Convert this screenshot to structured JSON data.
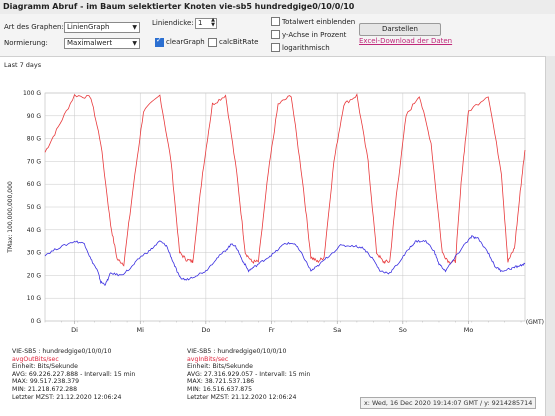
{
  "window": {
    "title": "Diagramm Abruf - im Baum selektierter Knoten vie-sb5 hundredgige0/10/0/10"
  },
  "controls": {
    "graph_type_label": "Art des Graphen:",
    "graph_type_value": "LinienGraph",
    "norm_label": "Normierung:",
    "norm_value": "Maximalwert",
    "linewidth_label": "Liniendicke:",
    "linewidth_value": "1",
    "clear_graph_label": "clearGraph",
    "clear_graph_checked": true,
    "calc_bitrate_label": "calcBitRate",
    "calc_bitrate_checked": false,
    "total_label": "Totalwert einblenden",
    "yaxis_percent_label": "y-Achse in Prozent",
    "log_label": "logarithmisch",
    "show_button": "Darstellen",
    "excel_link": "Excel-Download der Daten"
  },
  "chart_data": {
    "type": "line",
    "title": "Last 7 days",
    "xlabel": "(GMT)",
    "ylabel": "TMax: 100,000,000,000",
    "ylim": [
      0,
      100
    ],
    "yticks": [
      "0 G",
      "10 G",
      "20 G",
      "30 G",
      "40 G",
      "50 G",
      "60 G",
      "70 G",
      "80 G",
      "90 G",
      "100 G"
    ],
    "x_days": [
      "Di",
      "Mi",
      "Do",
      "Fr",
      "Sa",
      "So",
      "Mo"
    ],
    "x_range_days": [
      0,
      7.31
    ],
    "day_positions": [
      0.45,
      1.45,
      2.45,
      3.45,
      4.45,
      5.45,
      6.45
    ],
    "colors": {
      "out": "#e8393b",
      "in": "#3a2fe0"
    },
    "series": [
      {
        "name": "outBitsSec",
        "values": [
          [
            0,
            74
          ],
          [
            0.2,
            85
          ],
          [
            0.45,
            99
          ],
          [
            0.7,
            98
          ],
          [
            0.85,
            78
          ],
          [
            1.0,
            42
          ],
          [
            1.1,
            27
          ],
          [
            1.2,
            25
          ],
          [
            1.35,
            60
          ],
          [
            1.5,
            92
          ],
          [
            1.75,
            99
          ],
          [
            1.92,
            70
          ],
          [
            2.05,
            30
          ],
          [
            2.15,
            27
          ],
          [
            2.25,
            26
          ],
          [
            2.4,
            65
          ],
          [
            2.55,
            95
          ],
          [
            2.75,
            99
          ],
          [
            2.92,
            65
          ],
          [
            3.05,
            30
          ],
          [
            3.15,
            26
          ],
          [
            3.25,
            26
          ],
          [
            3.4,
            65
          ],
          [
            3.55,
            95
          ],
          [
            3.75,
            99
          ],
          [
            3.92,
            62
          ],
          [
            4.05,
            28
          ],
          [
            4.15,
            26
          ],
          [
            4.25,
            28
          ],
          [
            4.4,
            70
          ],
          [
            4.55,
            95
          ],
          [
            4.75,
            99
          ],
          [
            4.92,
            70
          ],
          [
            5.05,
            30
          ],
          [
            5.15,
            26
          ],
          [
            5.25,
            26
          ],
          [
            5.35,
            55
          ],
          [
            5.5,
            90
          ],
          [
            5.7,
            99
          ],
          [
            5.88,
            78
          ],
          [
            6.05,
            30
          ],
          [
            6.15,
            26
          ],
          [
            6.25,
            26
          ],
          [
            6.35,
            65
          ],
          [
            6.45,
            92
          ],
          [
            6.75,
            99
          ],
          [
            6.95,
            65
          ],
          [
            7.05,
            26
          ],
          [
            7.15,
            32
          ],
          [
            7.25,
            60
          ],
          [
            7.31,
            75
          ]
        ]
      },
      {
        "name": "inBitsSec",
        "values": [
          [
            0,
            29
          ],
          [
            0.2,
            32
          ],
          [
            0.45,
            35
          ],
          [
            0.6,
            34
          ],
          [
            0.7,
            27
          ],
          [
            0.8,
            22
          ],
          [
            0.85,
            17
          ],
          [
            0.92,
            16
          ],
          [
            1.0,
            21
          ],
          [
            1.15,
            20
          ],
          [
            1.3,
            23
          ],
          [
            1.45,
            28
          ],
          [
            1.6,
            31
          ],
          [
            1.75,
            35
          ],
          [
            1.85,
            33
          ],
          [
            1.95,
            26
          ],
          [
            2.05,
            19
          ],
          [
            2.15,
            18
          ],
          [
            2.3,
            20
          ],
          [
            2.45,
            22
          ],
          [
            2.6,
            27
          ],
          [
            2.75,
            31
          ],
          [
            2.85,
            34
          ],
          [
            2.92,
            32
          ],
          [
            3.0,
            27
          ],
          [
            3.1,
            22
          ],
          [
            3.2,
            24
          ],
          [
            3.35,
            27
          ],
          [
            3.5,
            30
          ],
          [
            3.65,
            34
          ],
          [
            3.8,
            34
          ],
          [
            3.92,
            29
          ],
          [
            4.05,
            22
          ],
          [
            4.15,
            24
          ],
          [
            4.3,
            28
          ],
          [
            4.5,
            33
          ],
          [
            4.7,
            33
          ],
          [
            4.85,
            32
          ],
          [
            5.0,
            27
          ],
          [
            5.1,
            22
          ],
          [
            5.25,
            21
          ],
          [
            5.4,
            26
          ],
          [
            5.55,
            32
          ],
          [
            5.65,
            35
          ],
          [
            5.8,
            35
          ],
          [
            5.92,
            31
          ],
          [
            6.0,
            25
          ],
          [
            6.1,
            22
          ],
          [
            6.25,
            28
          ],
          [
            6.4,
            34
          ],
          [
            6.5,
            37
          ],
          [
            6.6,
            36
          ],
          [
            6.75,
            30
          ],
          [
            6.85,
            24
          ],
          [
            6.95,
            22
          ],
          [
            7.1,
            23
          ],
          [
            7.2,
            24
          ],
          [
            7.31,
            25
          ]
        ]
      }
    ]
  },
  "legend": {
    "left": {
      "title": "VIE-SB5 : hundredgige0/10/0/10",
      "series": "avgOutBits/sec",
      "unit": "Einheit: Bits/Sekunde",
      "avg": "AVG: 69.226.227.888  -  Intervall: 15 min",
      "max": "MAX: 99.517.238.379",
      "min": "MIN: 21.218.672.288",
      "last": "Letzter MZST: 21.12.2020 12:06:24"
    },
    "right": {
      "title": "VIE-SB5 : hundredgige0/10/0/10",
      "series": "avgInBits/sec",
      "unit": "Einheit: Bits/Sekunde",
      "avg": "AVG: 27.316.929.057  -  Intervall: 15 min",
      "max": "MAX: 38.721.537.186",
      "min": "MIN: 16.516.637.875",
      "last": "Letzter MZST: 21.12.2020 12:06:24"
    }
  },
  "tooltip": "x: Wed, 16 Dec 2020 19:14:07 GMT / y: 9214285714"
}
